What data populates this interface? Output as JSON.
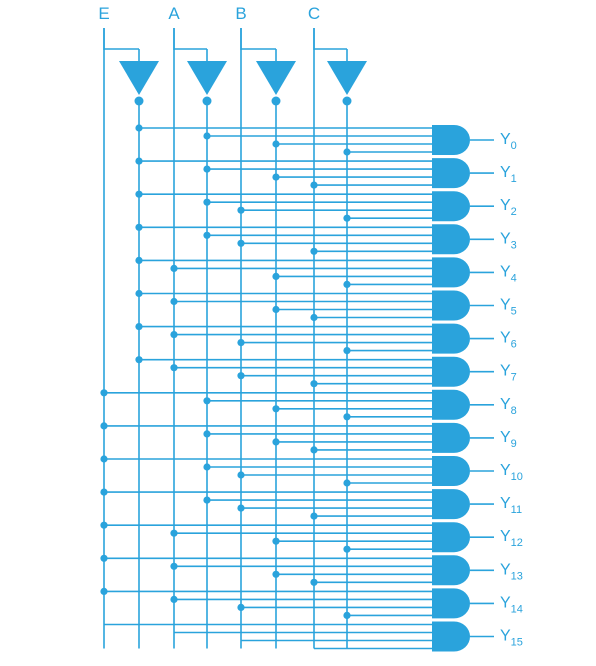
{
  "accent_color": "#2aa3dc",
  "inputs": [
    {
      "id": "E",
      "label": "E"
    },
    {
      "id": "A",
      "label": "A"
    },
    {
      "id": "B",
      "label": "B"
    },
    {
      "id": "C",
      "label": "C"
    }
  ],
  "inverters": [
    "E",
    "A",
    "B",
    "C"
  ],
  "gate_type": "AND",
  "outputs": [
    {
      "label": "Y",
      "sub": "0",
      "bits": [
        0,
        0,
        0,
        0
      ]
    },
    {
      "label": "Y",
      "sub": "1",
      "bits": [
        0,
        0,
        0,
        1
      ]
    },
    {
      "label": "Y",
      "sub": "2",
      "bits": [
        0,
        0,
        1,
        0
      ]
    },
    {
      "label": "Y",
      "sub": "3",
      "bits": [
        0,
        0,
        1,
        1
      ]
    },
    {
      "label": "Y",
      "sub": "4",
      "bits": [
        0,
        1,
        0,
        0
      ]
    },
    {
      "label": "Y",
      "sub": "5",
      "bits": [
        0,
        1,
        0,
        1
      ]
    },
    {
      "label": "Y",
      "sub": "6",
      "bits": [
        0,
        1,
        1,
        0
      ]
    },
    {
      "label": "Y",
      "sub": "7",
      "bits": [
        0,
        1,
        1,
        1
      ]
    },
    {
      "label": "Y",
      "sub": "8",
      "bits": [
        1,
        0,
        0,
        0
      ]
    },
    {
      "label": "Y",
      "sub": "9",
      "bits": [
        1,
        0,
        0,
        1
      ]
    },
    {
      "label": "Y",
      "sub": "10",
      "bits": [
        1,
        0,
        1,
        0
      ]
    },
    {
      "label": "Y",
      "sub": "11",
      "bits": [
        1,
        0,
        1,
        1
      ]
    },
    {
      "label": "Y",
      "sub": "12",
      "bits": [
        1,
        1,
        0,
        0
      ]
    },
    {
      "label": "Y",
      "sub": "13",
      "bits": [
        1,
        1,
        0,
        1
      ]
    },
    {
      "label": "Y",
      "sub": "14",
      "bits": [
        1,
        1,
        1,
        0
      ]
    },
    {
      "label": "Y",
      "sub": "15",
      "bits": [
        1,
        1,
        1,
        1
      ]
    }
  ]
}
